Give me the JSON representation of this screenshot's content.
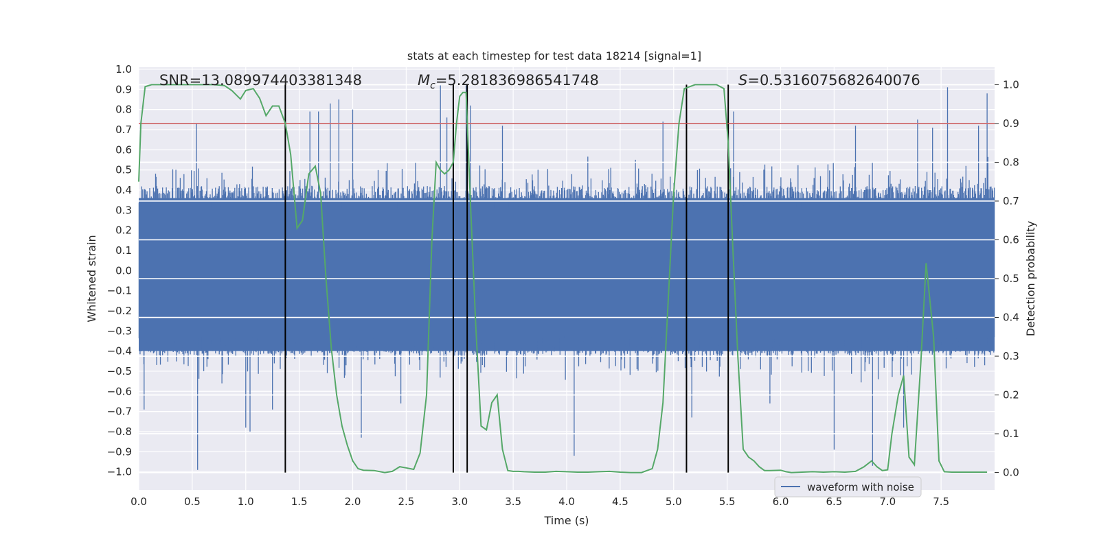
{
  "chart_data": {
    "type": "line",
    "title": "stats at each timestep for test data 18214 [signal=1]",
    "xlabel": "Time (s)",
    "ylabel": "Whitened strain",
    "y2label": "Detection probability",
    "xlim": [
      0.0,
      8.0
    ],
    "ylim": [
      -1.09,
      1.01
    ],
    "y2lim": [
      -0.045,
      1.045
    ],
    "x_ticks": [
      "0.0",
      "0.5",
      "1.0",
      "1.5",
      "2.0",
      "2.5",
      "3.0",
      "3.5",
      "4.0",
      "4.5",
      "5.0",
      "5.5",
      "6.0",
      "6.5",
      "7.0",
      "7.5"
    ],
    "y_ticks": [
      "1.0",
      "0.9",
      "0.8",
      "0.7",
      "0.6",
      "0.5",
      "0.4",
      "0.3",
      "0.2",
      "0.1",
      "0.0",
      "-0.1",
      "-0.2",
      "-0.3",
      "-0.4",
      "-0.5",
      "-0.6",
      "-0.7",
      "-0.8",
      "-0.9",
      "-1.0"
    ],
    "y2_ticks": [
      "1.0",
      "0.9",
      "0.8",
      "0.7",
      "0.6",
      "0.5",
      "0.4",
      "0.3",
      "0.2",
      "0.1",
      "0.0"
    ],
    "annotations": {
      "snr": "SNR=13.089974403381348",
      "mc_symbol": "M",
      "mc_sub": "c",
      "mc_value": "=5.281836986541748",
      "s_symbol": "S",
      "s_value": "=0.5316075682640076"
    },
    "legend": {
      "label": "waveform with noise",
      "position": "lower right"
    },
    "threshold": {
      "value": 0.9,
      "axis": "right",
      "color": "#c44e52"
    },
    "vertical_lines": [
      1.37,
      2.94,
      3.07,
      5.12,
      5.51
    ],
    "series": [
      {
        "name": "waveform with noise",
        "axis": "left",
        "color": "#4c72b0",
        "seed": 18214,
        "samples": 1600,
        "envelope_abs": 0.42,
        "spikes": [
          {
            "x": 0.55,
            "y": -0.99
          },
          {
            "x": 0.05,
            "y": -0.69
          },
          {
            "x": 0.54,
            "y": 0.73
          },
          {
            "x": 1.0,
            "y": -0.78
          },
          {
            "x": 1.04,
            "y": -0.8
          },
          {
            "x": 1.6,
            "y": 0.79
          },
          {
            "x": 1.68,
            "y": 0.79
          },
          {
            "x": 1.79,
            "y": 0.83
          },
          {
            "x": 1.87,
            "y": 0.85
          },
          {
            "x": 2.0,
            "y": 0.8
          },
          {
            "x": 2.08,
            "y": -0.83
          },
          {
            "x": 2.45,
            "y": -0.66
          },
          {
            "x": 2.82,
            "y": 0.92
          },
          {
            "x": 2.88,
            "y": 0.76
          },
          {
            "x": 3.06,
            "y": 0.92
          },
          {
            "x": 3.1,
            "y": 0.82
          },
          {
            "x": 3.4,
            "y": 0.72
          },
          {
            "x": 4.07,
            "y": -0.92
          },
          {
            "x": 4.9,
            "y": 0.74
          },
          {
            "x": 5.17,
            "y": -0.73
          },
          {
            "x": 5.56,
            "y": 0.79
          },
          {
            "x": 6.5,
            "y": -0.89
          },
          {
            "x": 6.86,
            "y": -0.97
          },
          {
            "x": 7.15,
            "y": -0.78
          },
          {
            "x": 7.28,
            "y": 0.75
          },
          {
            "x": 7.42,
            "y": 0.71
          },
          {
            "x": 7.56,
            "y": 0.91
          },
          {
            "x": 7.93,
            "y": 0.88
          },
          {
            "x": 7.85,
            "y": 0.72
          },
          {
            "x": 1.25,
            "y": -0.69
          },
          {
            "x": 6.7,
            "y": 0.72
          },
          {
            "x": 5.9,
            "y": -0.66
          }
        ]
      },
      {
        "name": "detection probability",
        "axis": "right",
        "color": "#55a868",
        "x": [
          0.0,
          0.02,
          0.06,
          0.12,
          0.2,
          0.3,
          0.4,
          0.5,
          0.6,
          0.7,
          0.8,
          0.87,
          0.95,
          1.0,
          1.07,
          1.13,
          1.19,
          1.25,
          1.31,
          1.37,
          1.42,
          1.48,
          1.53,
          1.59,
          1.65,
          1.7,
          1.75,
          1.8,
          1.85,
          1.9,
          1.95,
          2.0,
          2.05,
          2.1,
          2.2,
          2.3,
          2.37,
          2.44,
          2.5,
          2.57,
          2.63,
          2.69,
          2.74,
          2.78,
          2.82,
          2.86,
          2.9,
          2.94,
          2.97,
          3.0,
          3.03,
          3.06,
          3.1,
          3.15,
          3.2,
          3.25,
          3.3,
          3.35,
          3.4,
          3.45,
          3.5,
          3.55,
          3.6,
          3.7,
          3.8,
          3.9,
          4.0,
          4.1,
          4.2,
          4.3,
          4.4,
          4.5,
          4.6,
          4.7,
          4.8,
          4.85,
          4.9,
          4.95,
          5.0,
          5.05,
          5.1,
          5.15,
          5.2,
          5.3,
          5.4,
          5.47,
          5.51,
          5.55,
          5.6,
          5.65,
          5.7,
          5.75,
          5.8,
          5.85,
          5.9,
          6.0,
          6.05,
          6.1,
          6.2,
          6.3,
          6.4,
          6.5,
          6.6,
          6.7,
          6.78,
          6.85,
          6.9,
          6.95,
          7.0,
          7.04,
          7.1,
          7.15,
          7.2,
          7.25,
          7.31,
          7.36,
          7.43,
          7.48,
          7.53,
          7.6,
          7.7,
          7.8,
          7.9,
          7.93
        ],
        "y": [
          0.75,
          0.9,
          0.995,
          1.0,
          1.0,
          1.0,
          1.0,
          1.0,
          1.0,
          1.0,
          0.998,
          0.985,
          0.963,
          0.985,
          0.99,
          0.965,
          0.92,
          0.945,
          0.945,
          0.9,
          0.82,
          0.63,
          0.65,
          0.77,
          0.79,
          0.72,
          0.5,
          0.32,
          0.2,
          0.12,
          0.07,
          0.03,
          0.01,
          0.006,
          0.005,
          0.0,
          0.003,
          0.015,
          0.012,
          0.008,
          0.05,
          0.2,
          0.6,
          0.8,
          0.78,
          0.77,
          0.78,
          0.8,
          0.9,
          0.97,
          0.98,
          0.98,
          0.7,
          0.38,
          0.12,
          0.11,
          0.18,
          0.2,
          0.06,
          0.005,
          0.003,
          0.003,
          0.002,
          0.001,
          0.001,
          0.003,
          0.002,
          0.001,
          0.001,
          0.002,
          0.003,
          0.001,
          0.0,
          0.0,
          0.01,
          0.06,
          0.18,
          0.45,
          0.72,
          0.9,
          0.99,
          0.995,
          1.0,
          1.0,
          1.0,
          0.99,
          0.85,
          0.6,
          0.3,
          0.06,
          0.04,
          0.03,
          0.015,
          0.005,
          0.005,
          0.006,
          0.002,
          0.0,
          0.001,
          0.002,
          0.001,
          0.002,
          0.001,
          0.003,
          0.015,
          0.03,
          0.015,
          0.005,
          0.007,
          0.1,
          0.2,
          0.25,
          0.04,
          0.02,
          0.28,
          0.54,
          0.35,
          0.03,
          0.002,
          0.001,
          0.001,
          0.001,
          0.001,
          0.001
        ]
      }
    ]
  }
}
